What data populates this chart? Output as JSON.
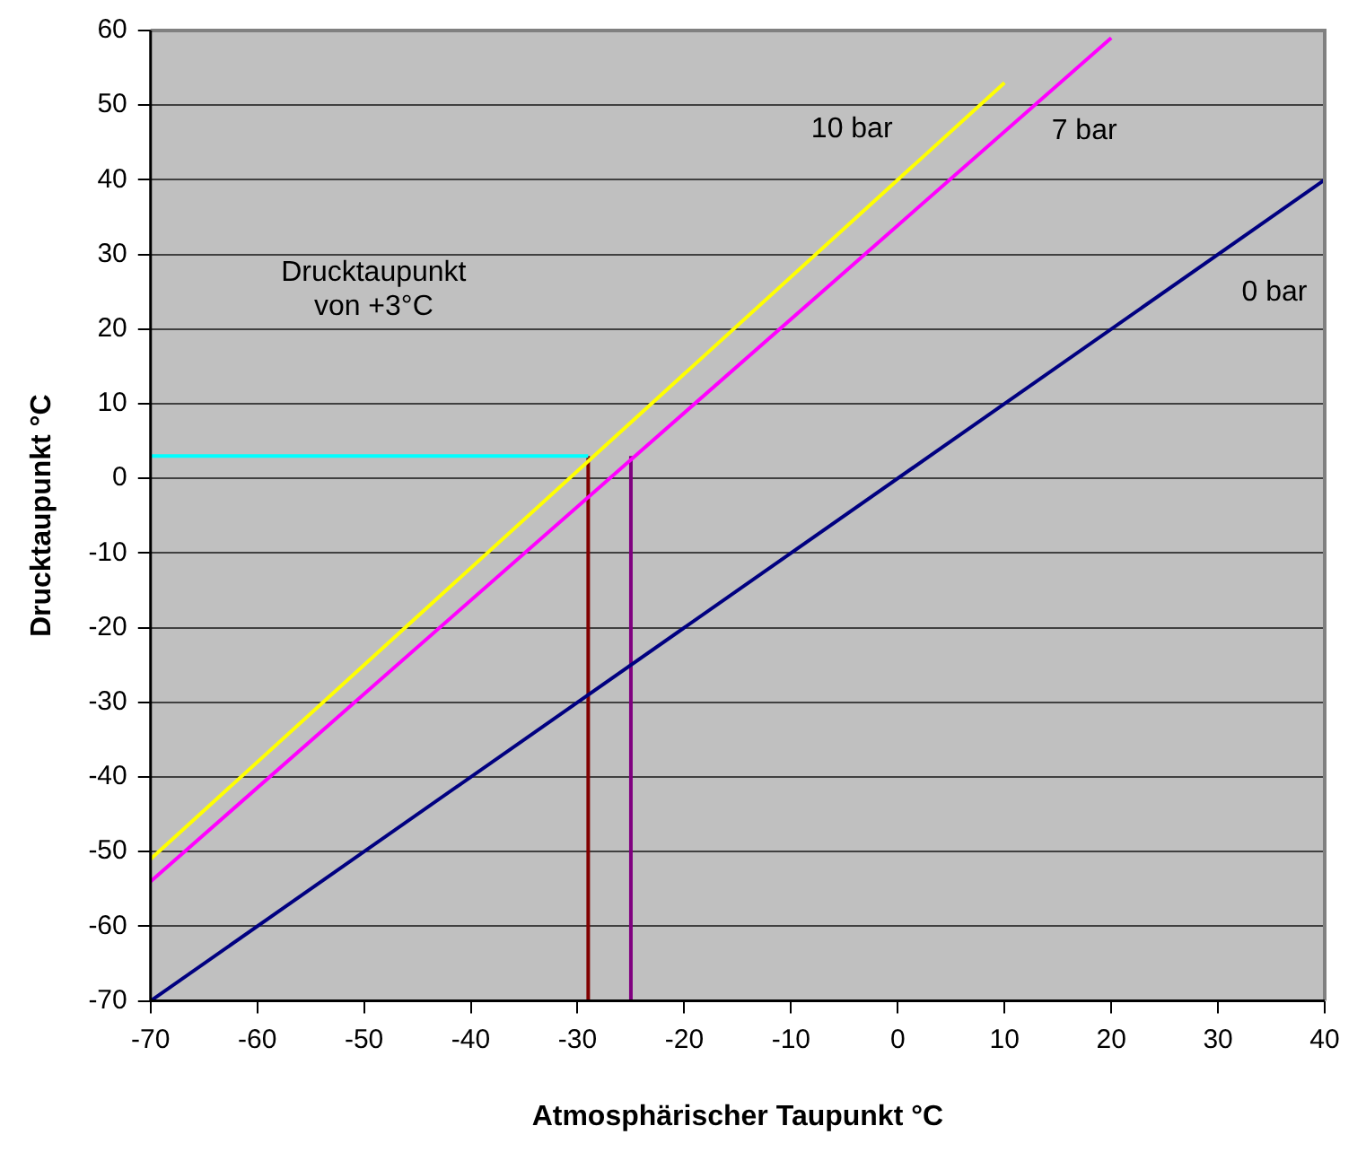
{
  "chart_data": {
    "type": "line",
    "xlabel": "Atmosphärischer Taupunkt °C",
    "ylabel": "Drucktaupunkt °C",
    "xlim": [
      -70,
      40
    ],
    "xticks": [
      -70,
      -60,
      -50,
      -40,
      -30,
      -20,
      -10,
      0,
      10,
      20,
      30,
      40
    ],
    "ylim": [
      -70,
      60
    ],
    "yticks": [
      -70,
      -60,
      -50,
      -40,
      -30,
      -20,
      -10,
      0,
      10,
      20,
      30,
      40,
      50,
      60
    ],
    "grid": "y",
    "marker": "none",
    "line_style": "solid",
    "legend": false,
    "series": [
      {
        "name": "0 bar",
        "color": "#000080",
        "x": [
          -70,
          40
        ],
        "values": [
          -70,
          40
        ]
      },
      {
        "name": "10 bar",
        "color": "#ffff00",
        "x": [
          -70,
          10
        ],
        "values": [
          -51,
          53
        ]
      },
      {
        "name": "7 bar",
        "color": "#ff00ff",
        "x": [
          -70,
          20
        ],
        "values": [
          -54,
          59
        ]
      },
      {
        "color": "#00ffff",
        "x": [
          -70,
          -29
        ],
        "values": [
          3,
          3
        ]
      },
      {
        "color": "#800000",
        "x": [
          -29,
          -29
        ],
        "values": [
          -70,
          3
        ]
      },
      {
        "color": "#800080",
        "x": [
          -25,
          -25
        ],
        "values": [
          -70,
          3
        ]
      }
    ],
    "annotations": [
      "Drucktaupunkt\nvon +3°C"
    ]
  }
}
